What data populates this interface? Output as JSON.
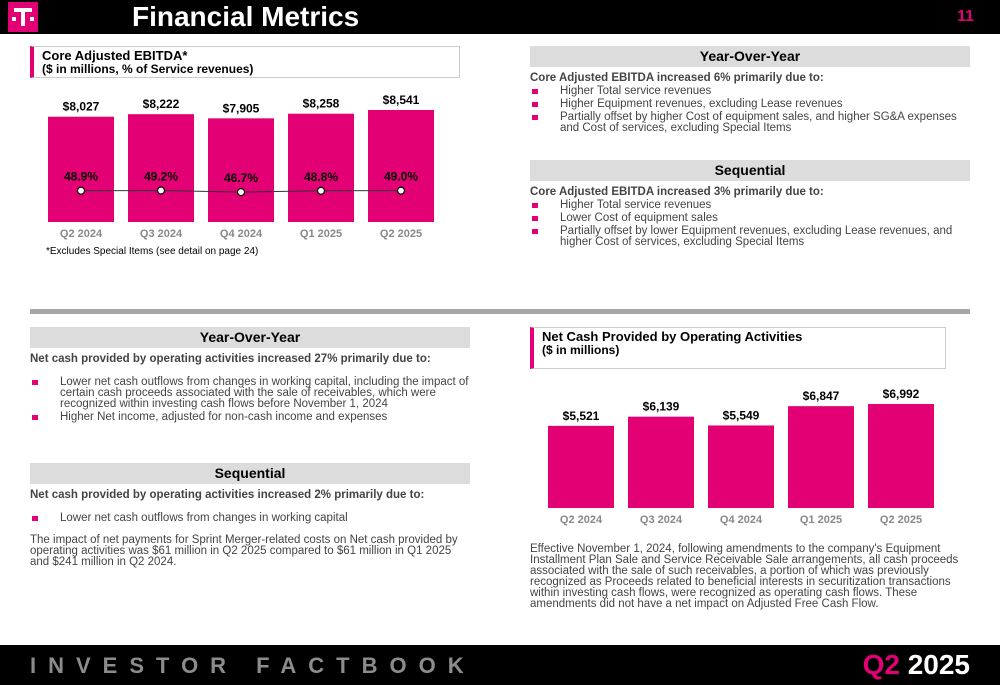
{
  "header": {
    "title": "Financial Metrics",
    "page_number": "11"
  },
  "ebitda": {
    "title_line1": "Core Adjusted EBITDA*",
    "title_line2": "($ in millions, % of Service revenues)",
    "footnote": "*Excludes Special Items (see detail on page 24)"
  },
  "yoy_top": {
    "heading": "Year-Over-Year",
    "lead": "Core Adjusted EBITDA increased 6% primarily due to:",
    "bullets": [
      "Higher Total service revenues",
      "Higher Equipment revenues, excluding Lease revenues",
      "Partially offset by higher Cost of equipment sales, and higher SG&A expenses and Cost of services, excluding Special Items"
    ]
  },
  "seq_top": {
    "heading": "Sequential",
    "lead": "Core Adjusted EBITDA increased 3% primarily due to:",
    "bullets": [
      "Higher Total service revenues",
      "Lower Cost of equipment sales",
      "Partially offset by lower Equipment revenues, excluding Lease revenues, and higher Cost of services, excluding Special Items"
    ]
  },
  "yoy_bottom": {
    "heading": "Year-Over-Year",
    "lead": "Net cash provided by operating activities increased 27% primarily due to:",
    "bullets": [
      "Lower net cash outflows from changes in working capital, including the impact of certain cash proceeds associated with the sale of receivables, which were recognized within investing cash flows before November 1, 2024",
      "Higher Net income, adjusted for non-cash income and expenses"
    ]
  },
  "seq_bottom": {
    "heading": "Sequential",
    "lead": "Net cash provided by operating activities increased 2% primarily due to:",
    "bullets": [
      "Lower net cash outflows from changes in working capital"
    ],
    "paragraph": "The impact of net payments for Sprint Merger-related costs on Net cash provided by operating activities was $61 million in Q2 2025 compared to $61 million in Q1 2025 and $241 million in Q2 2024."
  },
  "ncp": {
    "title_line1": "Net Cash Provided by Operating Activities",
    "title_line2": "($ in millions)",
    "paragraph": "Effective November 1, 2024, following amendments to the company's Equipment Installment Plan Sale and Service Receivable Sale arrangements, all cash proceeds associated with the sale of such receivables, a portion of which was previously recognized as Proceeds related to beneficial interests in securitization transactions within investing cash flows, were recognized as operating cash flows. These amendments did not have a net impact on Adjusted Free Cash Flow."
  },
  "footer": {
    "left": "INVESTOR FACTBOOK",
    "quarter": "Q2",
    "year": "2025"
  },
  "colors": {
    "magenta": "#e20074",
    "black": "#000000",
    "gray_bar": "#dcdcdc"
  },
  "chart_data": [
    {
      "type": "bar",
      "categories": [
        "Q2 2024",
        "Q3 2024",
        "Q4 2024",
        "Q1 2025",
        "Q2 2025"
      ],
      "series": [
        {
          "values": [
            8027,
            8222,
            7905,
            8258,
            8541
          ],
          "labels": [
            "$8,027",
            "$8,222",
            "$7,905",
            "$8,258",
            "$8,541"
          ]
        },
        {
          "type": "line",
          "values": [
            48.9,
            49.2,
            46.7,
            48.8,
            49.0
          ],
          "labels": [
            "48.9%",
            "49.2%",
            "46.7%",
            "48.8%",
            "49.0%"
          ]
        }
      ],
      "ylim": [
        0,
        8541
      ],
      "line_ylim": [
        0,
        100
      ],
      "title": "Core Adjusted EBITDA*",
      "subtitle": "($ in millions, % of Service revenues)"
    },
    {
      "type": "bar",
      "categories": [
        "Q2 2024",
        "Q3 2024",
        "Q4 2024",
        "Q1 2025",
        "Q2 2025"
      ],
      "values": [
        5521,
        6139,
        5549,
        6847,
        6992
      ],
      "labels": [
        "$5,521",
        "$6,139",
        "$5,549",
        "$6,847",
        "$6,992"
      ],
      "ylim": [
        0,
        6992
      ],
      "title": "Net Cash Provided by Operating Activities",
      "subtitle": "($ in millions)"
    }
  ]
}
